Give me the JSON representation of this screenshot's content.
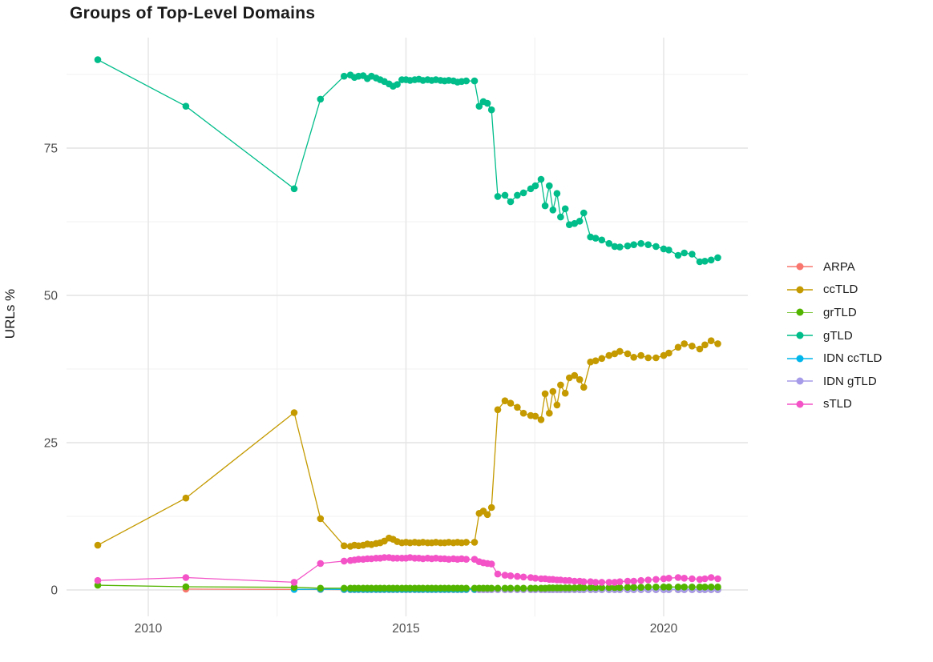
{
  "chart_data": {
    "type": "line",
    "title": "Groups of Top-Level Domains",
    "xlabel": "",
    "ylabel": "URLs %",
    "legend_position": "right",
    "grid": true,
    "x_ticks": [
      2010,
      2015,
      2020
    ],
    "x_minor_ticks": [
      2012.5,
      2017.5
    ],
    "y_ticks": [
      0,
      25,
      50,
      75
    ],
    "y_minor_ticks": [
      12.5,
      37.5,
      62.5,
      87.5
    ],
    "xlim": [
      2008.4,
      2021.6
    ],
    "ylim": [
      -3.8,
      93.8
    ],
    "x": [
      2009.02,
      2010.73,
      2012.83,
      2013.34,
      2013.8,
      2013.92,
      2014.0,
      2014.08,
      2014.17,
      2014.25,
      2014.33,
      2014.42,
      2014.5,
      2014.58,
      2014.67,
      2014.75,
      2014.83,
      2014.92,
      2015.0,
      2015.08,
      2015.17,
      2015.25,
      2015.33,
      2015.42,
      2015.5,
      2015.58,
      2015.67,
      2015.75,
      2015.83,
      2015.92,
      2016.0,
      2016.08,
      2016.17,
      2016.33,
      2016.42,
      2016.5,
      2016.58,
      2016.66,
      2016.78,
      2016.92,
      2017.03,
      2017.16,
      2017.28,
      2017.42,
      2017.51,
      2017.62,
      2017.7,
      2017.78,
      2017.85,
      2017.93,
      2018.0,
      2018.09,
      2018.17,
      2018.27,
      2018.37,
      2018.45,
      2018.58,
      2018.68,
      2018.8,
      2018.94,
      2019.05,
      2019.15,
      2019.3,
      2019.42,
      2019.56,
      2019.7,
      2019.85,
      2020.0,
      2020.1,
      2020.28,
      2020.4,
      2020.55,
      2020.7,
      2020.8,
      2020.92,
      2021.05
    ],
    "series": [
      {
        "name": "ARPA",
        "color": "#F8766D",
        "values": [
          null,
          0.15,
          0.1,
          0.08,
          0.05,
          0.05,
          0.05,
          0.05,
          0.05,
          0.05,
          0.05,
          0.05,
          0.05,
          0.05,
          0.05,
          0.05,
          0.05,
          0.05,
          0.05,
          0.05,
          0.05,
          0.05,
          0.05,
          0.05,
          0.05,
          0.05,
          0.05,
          0.05,
          0.05,
          0.05,
          0.05,
          0.05,
          0.05,
          0.05,
          0.05,
          0.05,
          0.05,
          0.05,
          0.05,
          0.05,
          0.05,
          0.05,
          0.05,
          0.05,
          0.05,
          0.05,
          0.05,
          0.05,
          0.05,
          0.05,
          0.05,
          0.05,
          0.05,
          0.05,
          0.05,
          0.05,
          0.05,
          0.05,
          0.05,
          0.05,
          0.05,
          0.05,
          0.05,
          0.05,
          0.05,
          0.05,
          0.05,
          0.05,
          0.05,
          0.05,
          0.05,
          0.05,
          0.05,
          0.05,
          0.05,
          0.05
        ]
      },
      {
        "name": "ccTLD",
        "color": "#C49A00",
        "values": [
          7.6,
          15.6,
          30.1,
          12.1,
          7.5,
          7.4,
          7.6,
          7.5,
          7.6,
          7.8,
          7.7,
          7.9,
          8.0,
          8.3,
          8.8,
          8.6,
          8.2,
          8.0,
          8.1,
          8.0,
          8.1,
          8.0,
          8.1,
          8.0,
          8.0,
          8.1,
          8.0,
          8.0,
          8.1,
          8.0,
          8.1,
          8.0,
          8.1,
          8.1,
          13.0,
          13.4,
          12.8,
          14.0,
          30.6,
          32.1,
          31.7,
          31.0,
          30.0,
          29.6,
          29.5,
          28.9,
          33.3,
          30.0,
          33.7,
          31.4,
          34.8,
          33.4,
          36.0,
          36.4,
          35.7,
          34.4,
          38.7,
          38.9,
          39.3,
          39.8,
          40.1,
          40.5,
          40.1,
          39.5,
          39.8,
          39.4,
          39.4,
          39.8,
          40.2,
          41.2,
          41.8,
          41.4,
          40.9,
          41.6,
          42.3,
          41.8
        ]
      },
      {
        "name": "grTLD",
        "color": "#53B400",
        "values": [
          0.8,
          0.55,
          0.45,
          0.3,
          0.3,
          0.3,
          0.3,
          0.3,
          0.3,
          0.3,
          0.3,
          0.3,
          0.3,
          0.3,
          0.3,
          0.3,
          0.3,
          0.3,
          0.3,
          0.3,
          0.3,
          0.3,
          0.3,
          0.3,
          0.3,
          0.3,
          0.3,
          0.3,
          0.3,
          0.3,
          0.3,
          0.3,
          0.3,
          0.3,
          0.3,
          0.3,
          0.3,
          0.3,
          0.3,
          0.3,
          0.3,
          0.3,
          0.3,
          0.3,
          0.3,
          0.3,
          0.3,
          0.35,
          0.35,
          0.35,
          0.35,
          0.35,
          0.35,
          0.35,
          0.4,
          0.4,
          0.4,
          0.4,
          0.4,
          0.4,
          0.4,
          0.4,
          0.45,
          0.45,
          0.45,
          0.5,
          0.5,
          0.5,
          0.5,
          0.5,
          0.5,
          0.5,
          0.5,
          0.5,
          0.5,
          0.5
        ]
      },
      {
        "name": "gTLD",
        "color": "#00BD8A",
        "values": [
          90.0,
          82.1,
          68.1,
          83.3,
          87.2,
          87.4,
          87.0,
          87.2,
          87.3,
          86.8,
          87.2,
          86.9,
          86.6,
          86.3,
          85.9,
          85.5,
          85.8,
          86.6,
          86.6,
          86.5,
          86.6,
          86.7,
          86.5,
          86.6,
          86.5,
          86.6,
          86.5,
          86.4,
          86.5,
          86.4,
          86.2,
          86.3,
          86.4,
          86.4,
          82.1,
          82.9,
          82.6,
          81.5,
          66.8,
          67.0,
          65.9,
          67.0,
          67.4,
          68.1,
          68.6,
          69.7,
          65.2,
          68.6,
          64.5,
          67.3,
          63.3,
          64.7,
          62.0,
          62.2,
          62.6,
          64.0,
          59.9,
          59.7,
          59.4,
          58.8,
          58.3,
          58.2,
          58.4,
          58.6,
          58.8,
          58.6,
          58.3,
          57.9,
          57.7,
          56.8,
          57.2,
          57.0,
          55.7,
          55.8,
          56.0,
          56.4
        ]
      },
      {
        "name": "IDN ccTLD",
        "color": "#00B6EB",
        "values": [
          null,
          null,
          0.1,
          0.12,
          0.1,
          0.1,
          0.1,
          0.1,
          0.1,
          0.1,
          0.1,
          0.1,
          0.1,
          0.1,
          0.1,
          0.1,
          0.1,
          0.1,
          0.1,
          0.1,
          0.1,
          0.1,
          0.1,
          0.1,
          0.1,
          0.1,
          0.1,
          0.1,
          0.1,
          0.1,
          0.1,
          0.1,
          0.1,
          0.1,
          0.1,
          0.1,
          0.1,
          0.1,
          0.1,
          0.1,
          0.1,
          0.1,
          0.1,
          0.1,
          0.1,
          0.1,
          0.1,
          0.1,
          0.1,
          0.1,
          0.1,
          0.1,
          0.1,
          0.1,
          0.1,
          0.1,
          0.1,
          0.1,
          0.1,
          0.1,
          0.1,
          0.1,
          0.1,
          0.1,
          0.1,
          0.1,
          0.1,
          0.1,
          0.1,
          0.1,
          0.1,
          0.1,
          0.1,
          0.1,
          0.1,
          0.1
        ]
      },
      {
        "name": "IDN gTLD",
        "color": "#A69BE8",
        "values": [
          null,
          null,
          null,
          null,
          null,
          null,
          null,
          null,
          null,
          null,
          null,
          null,
          null,
          null,
          null,
          null,
          null,
          null,
          null,
          null,
          null,
          null,
          null,
          null,
          null,
          null,
          null,
          null,
          null,
          null,
          null,
          null,
          null,
          null,
          0.05,
          0.05,
          0.05,
          0.05,
          0.05,
          0.05,
          0.05,
          0.05,
          0.05,
          0.05,
          0.05,
          0.05,
          0.05,
          0.05,
          0.05,
          0.05,
          0.05,
          0.05,
          0.05,
          0.05,
          0.05,
          0.05,
          0.05,
          0.05,
          0.05,
          0.05,
          0.05,
          0.05,
          0.05,
          0.05,
          0.05,
          0.05,
          0.05,
          0.05,
          0.05,
          0.05,
          0.05,
          0.05,
          0.05,
          0.05,
          0.05,
          0.05
        ]
      },
      {
        "name": "sTLD",
        "color": "#F353C7",
        "values": [
          1.6,
          2.1,
          1.3,
          4.5,
          4.9,
          5.0,
          5.1,
          5.2,
          5.2,
          5.3,
          5.3,
          5.4,
          5.4,
          5.5,
          5.5,
          5.4,
          5.4,
          5.4,
          5.4,
          5.5,
          5.4,
          5.4,
          5.3,
          5.4,
          5.3,
          5.4,
          5.3,
          5.3,
          5.2,
          5.3,
          5.2,
          5.3,
          5.2,
          5.2,
          4.8,
          4.6,
          4.5,
          4.4,
          2.7,
          2.5,
          2.4,
          2.3,
          2.2,
          2.1,
          2.0,
          1.9,
          1.9,
          1.8,
          1.8,
          1.7,
          1.7,
          1.6,
          1.6,
          1.5,
          1.5,
          1.4,
          1.4,
          1.3,
          1.3,
          1.3,
          1.3,
          1.4,
          1.5,
          1.5,
          1.6,
          1.7,
          1.8,
          1.9,
          2.0,
          2.1,
          2.0,
          1.9,
          1.8,
          1.9,
          2.1,
          1.9
        ]
      }
    ],
    "draw_order": [
      "ARPA",
      "IDN ccTLD",
      "IDN gTLD",
      "grTLD",
      "gTLD",
      "ccTLD",
      "sTLD"
    ],
    "legend_items": [
      "ARPA",
      "ccTLD",
      "grTLD",
      "gTLD",
      "IDN ccTLD",
      "IDN gTLD",
      "sTLD"
    ]
  },
  "colors": {
    "grid_major": "#E4E4E4",
    "grid_minor": "#F1F1F1",
    "axis_text": "#4D4D4D",
    "text": "#1a1a1a",
    "background": "#FFFFFF"
  }
}
